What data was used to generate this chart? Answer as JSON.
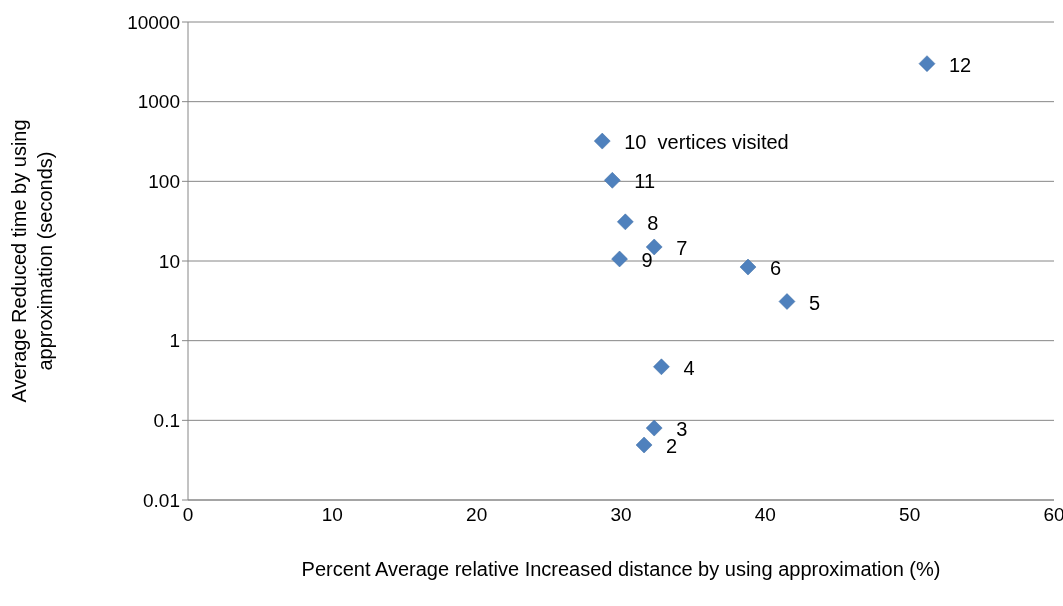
{
  "chart_data": {
    "type": "scatter",
    "xlabel": "Percent Average relative Increased distance by using approximation (%)",
    "ylabel": "Average Reduced time by using approximation (seconds)",
    "series": [
      {
        "color": "#4f81bd",
        "x": [
          31.6,
          32.3,
          32.8,
          41.5,
          38.8,
          32.3,
          30.3,
          29.9,
          28.7,
          29.4,
          51.2
        ],
        "values": [
          0.049,
          0.08,
          0.47,
          3.1,
          8.4,
          15,
          31,
          10.6,
          320,
          103,
          3000
        ]
      }
    ],
    "annotations": [
      {
        "text": "2",
        "x": 31.6,
        "y": 0.049
      },
      {
        "text": "3",
        "x": 32.3,
        "y": 0.08
      },
      {
        "text": "4",
        "x": 32.8,
        "y": 0.47
      },
      {
        "text": "5",
        "x": 41.5,
        "y": 3.1
      },
      {
        "text": "6",
        "x": 38.8,
        "y": 8.4
      },
      {
        "text": "7",
        "x": 32.3,
        "y": 15
      },
      {
        "text": "8",
        "x": 30.3,
        "y": 31
      },
      {
        "text": "9",
        "x": 29.9,
        "y": 10.6
      },
      {
        "text": "10  vertices visited",
        "x": 28.7,
        "y": 320
      },
      {
        "text": "11",
        "x": 29.4,
        "y": 103
      },
      {
        "text": "12",
        "x": 51.2,
        "y": 3000
      }
    ],
    "xlim": [
      0,
      60
    ],
    "xticks": [
      0,
      10,
      20,
      30,
      40,
      50,
      60
    ],
    "ylim": [
      0.01,
      10000
    ],
    "yticks": [
      0.01,
      0.1,
      1,
      10,
      100,
      1000,
      10000
    ],
    "log": "y",
    "grid": "y",
    "legend": false,
    "marker": "diamond"
  }
}
